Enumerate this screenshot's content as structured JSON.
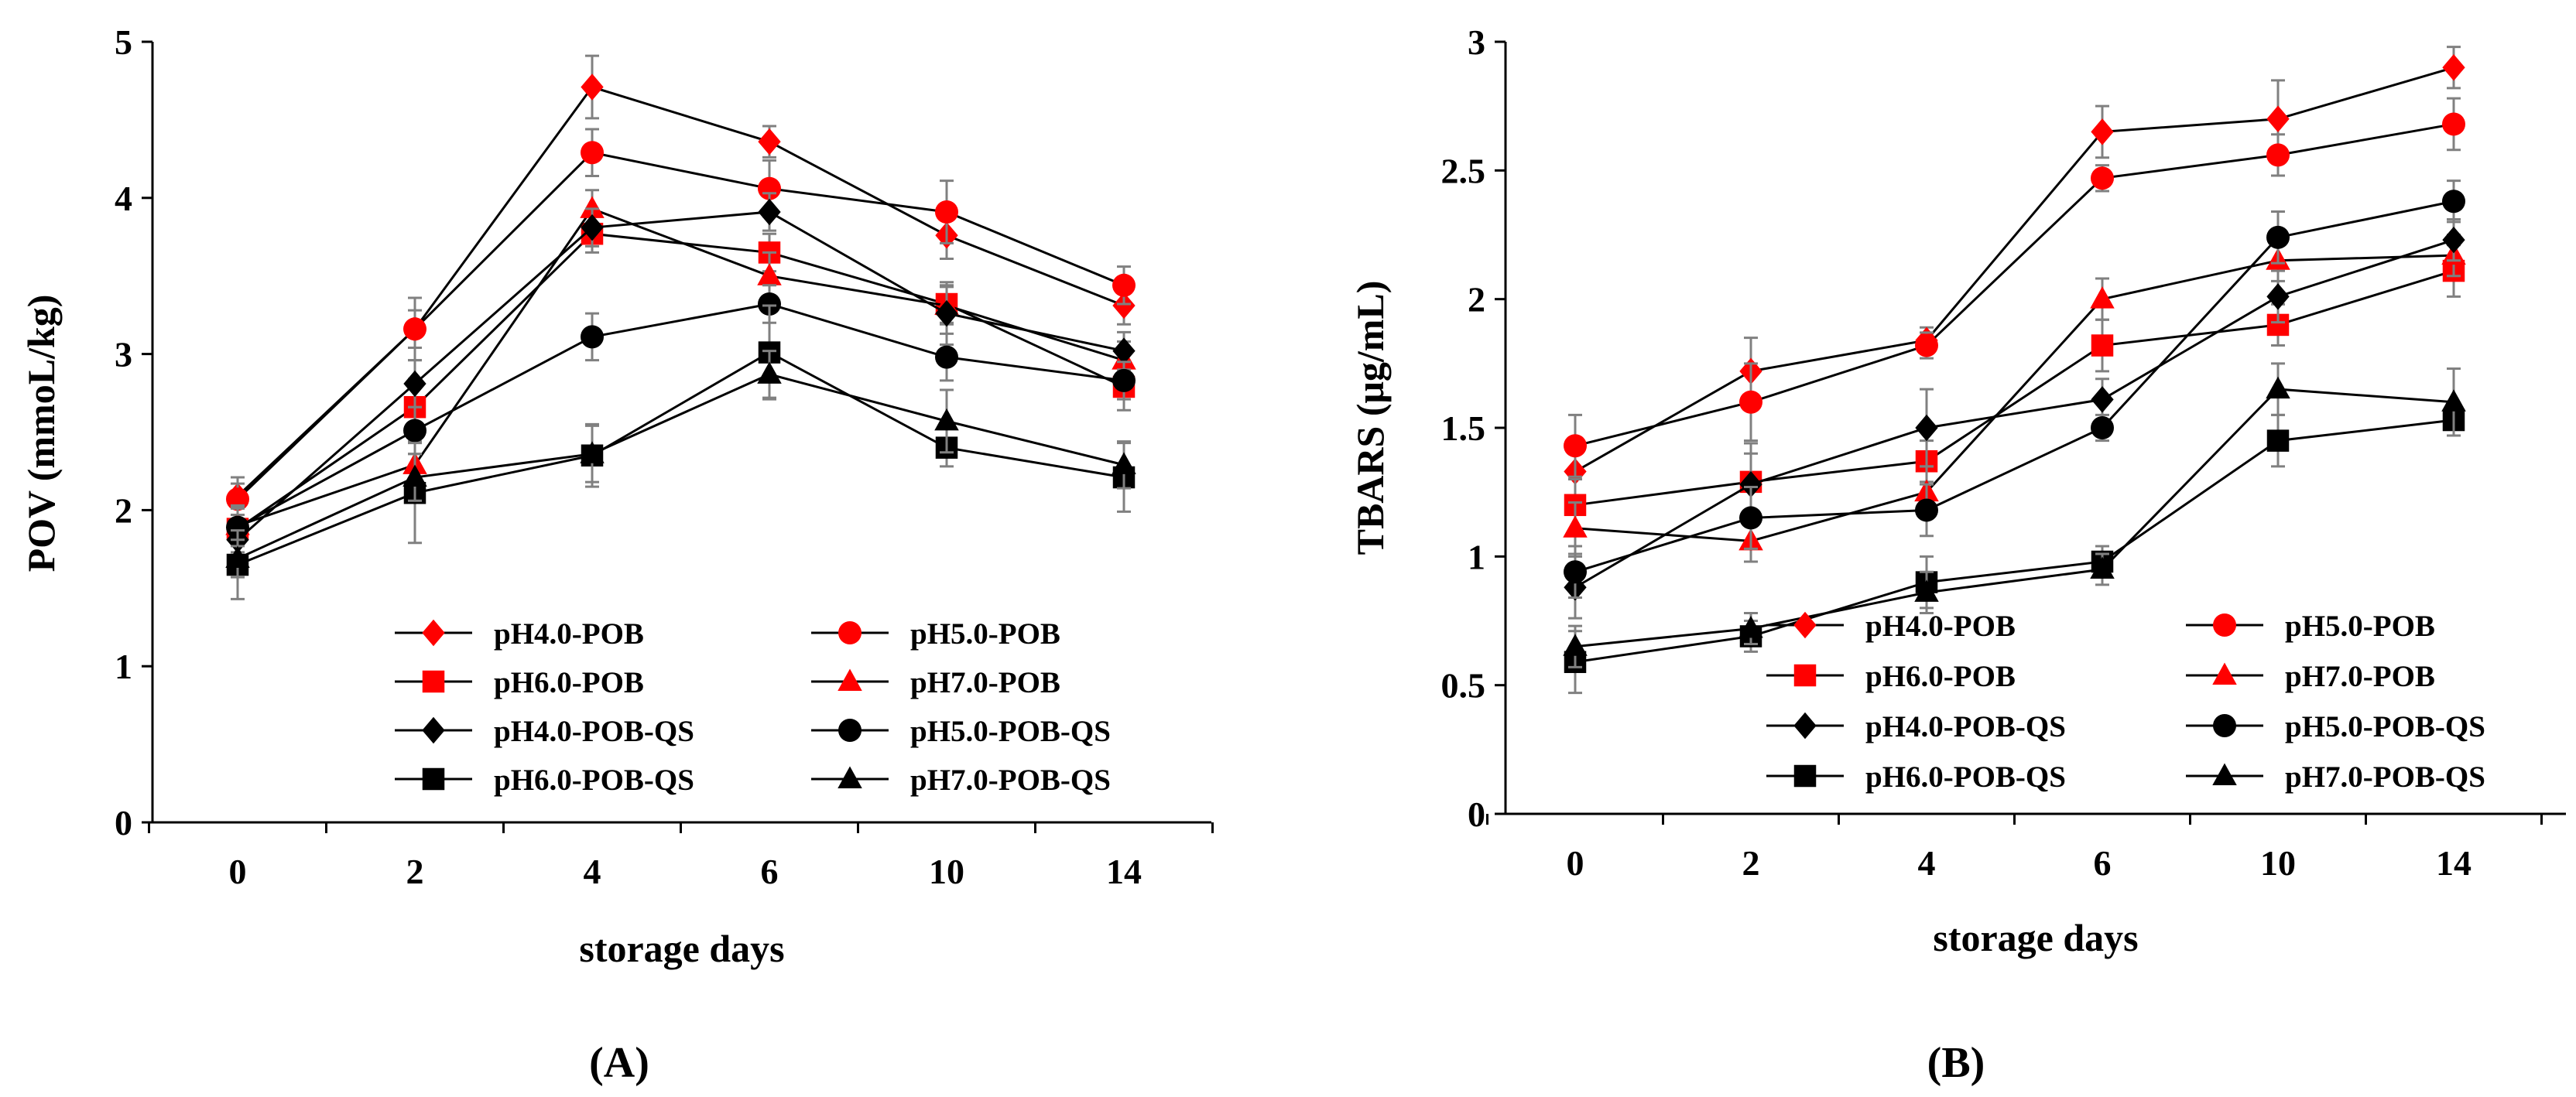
{
  "chart_data": [
    {
      "type": "line",
      "panel_label": "(A)",
      "xlabel": "storage days",
      "ylabel": "POV (mmoL/kg)",
      "categories": [
        "0",
        "2",
        "4",
        "6",
        "10",
        "14"
      ],
      "ylim": [
        0,
        5
      ],
      "yticks": [
        "0",
        "1",
        "2",
        "3",
        "4",
        "5"
      ],
      "legend_position": "bottom-right",
      "series": [
        {
          "name": "pH4.0-POB",
          "color": "#ff0000",
          "marker": "diamond",
          "values": [
            2.09,
            3.16,
            4.71,
            4.36,
            3.76,
            3.31
          ],
          "errors": [
            0.12,
            0.2,
            0.2,
            0.1,
            0.15,
            0.12
          ]
        },
        {
          "name": "pH5.0-POB",
          "color": "#ff0000",
          "marker": "circle",
          "values": [
            2.07,
            3.16,
            4.29,
            4.06,
            3.91,
            3.44
          ],
          "errors": [
            0.1,
            0.12,
            0.15,
            0.18,
            0.2,
            0.12
          ]
        },
        {
          "name": "pH6.0-POB",
          "color": "#ff0000",
          "marker": "square",
          "values": [
            1.88,
            2.66,
            3.77,
            3.65,
            3.32,
            2.79
          ],
          "errors": [
            0.15,
            0.18,
            0.12,
            0.12,
            0.12,
            0.15
          ]
        },
        {
          "name": "pH7.0-POB",
          "color": "#ff0000",
          "marker": "triangle",
          "values": [
            1.9,
            2.29,
            3.93,
            3.5,
            3.31,
            2.96
          ],
          "errors": [
            0.12,
            0.15,
            0.12,
            0.15,
            0.12,
            0.12
          ]
        },
        {
          "name": "pH4.0-POB-QS",
          "color": "#000000",
          "marker": "diamond",
          "values": [
            1.81,
            2.81,
            3.81,
            3.91,
            3.26,
            3.02
          ],
          "errors": [
            0.12,
            0.15,
            0.12,
            0.12,
            0.2,
            0.12
          ]
        },
        {
          "name": "pH5.0-POB-QS",
          "color": "#000000",
          "marker": "circle",
          "values": [
            1.89,
            2.51,
            3.11,
            3.32,
            2.98,
            2.83
          ],
          "errors": [
            0.12,
            0.15,
            0.15,
            0.12,
            0.15,
            0.12
          ]
        },
        {
          "name": "pH6.0-POB-QS",
          "color": "#000000",
          "marker": "square",
          "values": [
            1.65,
            2.11,
            2.35,
            3.01,
            2.4,
            2.21
          ],
          "errors": [
            0.22,
            0.32,
            0.2,
            0.3,
            0.12,
            0.22
          ]
        },
        {
          "name": "pH7.0-POB-QS",
          "color": "#000000",
          "marker": "triangle",
          "values": [
            1.69,
            2.21,
            2.36,
            2.87,
            2.57,
            2.29
          ],
          "errors": [
            0.12,
            0.15,
            0.18,
            0.15,
            0.2,
            0.15
          ]
        }
      ]
    },
    {
      "type": "line",
      "panel_label": "(B)",
      "xlabel": "storage days",
      "ylabel": "TBARS (μg/mL)",
      "categories": [
        "0",
        "2",
        "4",
        "6",
        "10",
        "14"
      ],
      "ylim": [
        0,
        3
      ],
      "yticks": [
        "0",
        "0.5",
        "1",
        "1.5",
        "2",
        "2.5",
        "3"
      ],
      "legend_position": "bottom-right",
      "series": [
        {
          "name": "pH4.0-POB",
          "color": "#ff0000",
          "marker": "diamond",
          "values": [
            1.33,
            1.72,
            1.84,
            2.65,
            2.7,
            2.9
          ],
          "errors": [
            0.1,
            0.13,
            0.05,
            0.1,
            0.15,
            0.08
          ]
        },
        {
          "name": "pH5.0-POB",
          "color": "#ff0000",
          "marker": "circle",
          "values": [
            1.43,
            1.6,
            1.82,
            2.47,
            2.56,
            2.68
          ],
          "errors": [
            0.12,
            0.15,
            0.05,
            0.05,
            0.08,
            0.1
          ]
        },
        {
          "name": "pH6.0-POB",
          "color": "#ff0000",
          "marker": "square",
          "values": [
            1.2,
            1.29,
            1.37,
            1.82,
            1.9,
            2.11
          ],
          "errors": [
            0.1,
            0.15,
            0.08,
            0.1,
            0.08,
            0.1
          ]
        },
        {
          "name": "pH7.0-POB",
          "color": "#ff0000",
          "marker": "triangle",
          "values": [
            1.11,
            1.06,
            1.25,
            2.0,
            2.15,
            2.17
          ],
          "errors": [
            0.1,
            0.08,
            0.1,
            0.08,
            0.08,
            0.08
          ]
        },
        {
          "name": "pH4.0-POB-QS",
          "color": "#000000",
          "marker": "diamond",
          "values": [
            0.88,
            1.28,
            1.5,
            1.61,
            2.01,
            2.23
          ],
          "errors": [
            0.12,
            0.12,
            0.15,
            0.08,
            0.1,
            0.08
          ]
        },
        {
          "name": "pH5.0-POB-QS",
          "color": "#000000",
          "marker": "circle",
          "values": [
            0.94,
            1.15,
            1.18,
            1.5,
            2.24,
            2.38
          ],
          "errors": [
            0.1,
            0.12,
            0.1,
            0.05,
            0.1,
            0.08
          ]
        },
        {
          "name": "pH6.0-POB-QS",
          "color": "#000000",
          "marker": "square",
          "values": [
            0.59,
            0.69,
            0.9,
            0.98,
            1.45,
            1.53
          ],
          "errors": [
            0.12,
            0.06,
            0.1,
            0.06,
            0.1,
            0.06
          ]
        },
        {
          "name": "pH7.0-POB-QS",
          "color": "#000000",
          "marker": "triangle",
          "values": [
            0.65,
            0.72,
            0.86,
            0.95,
            1.65,
            1.6
          ],
          "errors": [
            0.08,
            0.06,
            0.08,
            0.06,
            0.1,
            0.13
          ]
        }
      ]
    }
  ]
}
